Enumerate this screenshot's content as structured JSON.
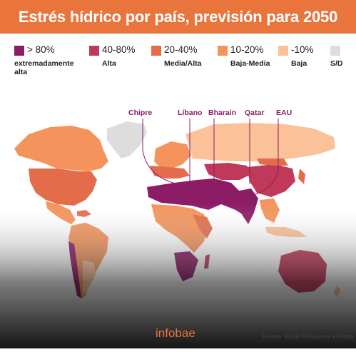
{
  "title": "Estrés hídrico por país, previsión para 2050",
  "legend": [
    {
      "range": "> 80%",
      "label": "extremadamente alta",
      "color": "#8c1c66"
    },
    {
      "range": "40-80%",
      "label": "Alta",
      "color": "#c1395a"
    },
    {
      "range": "20-40%",
      "label": "Media/Alta",
      "color": "#e36d4a"
    },
    {
      "range": "10-20%",
      "label": "Baja-Media",
      "color": "#f4945c"
    },
    {
      "range": "-10%",
      "label": "Baja",
      "color": "#fbc29a"
    },
    {
      "range": "",
      "label": "S/D",
      "color": "#dddddd"
    }
  ],
  "callouts": [
    "Chipre",
    "Líbano",
    "Bharain",
    "Qatar",
    "EAU"
  ],
  "footer": {
    "brand": "infobae",
    "source": "Fuente: World Resources Institute"
  },
  "colors": {
    "accent": "#e9743c",
    "extreme": "#8c1c66",
    "high": "#c1395a",
    "medium_high": "#e36d4a",
    "low_medium": "#f4945c",
    "low": "#fbc29a",
    "no_data": "#dddddd"
  }
}
